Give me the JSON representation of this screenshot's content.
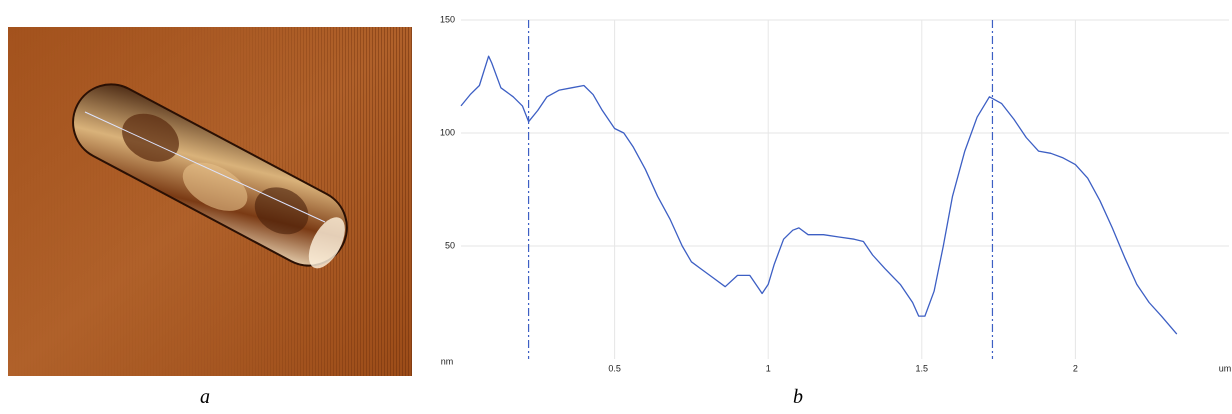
{
  "chart_data": {
    "type": "line",
    "xlabel": "um",
    "ylabel": "nm",
    "x": [
      0.0,
      0.03,
      0.06,
      0.09,
      0.1,
      0.13,
      0.17,
      0.2,
      0.22,
      0.25,
      0.28,
      0.32,
      0.36,
      0.4,
      0.43,
      0.46,
      0.5,
      0.53,
      0.56,
      0.6,
      0.64,
      0.68,
      0.72,
      0.75,
      0.78,
      0.82,
      0.86,
      0.9,
      0.94,
      0.97,
      0.98,
      1.0,
      1.02,
      1.05,
      1.08,
      1.1,
      1.13,
      1.18,
      1.23,
      1.28,
      1.31,
      1.34,
      1.38,
      1.43,
      1.47,
      1.49,
      1.51,
      1.54,
      1.57,
      1.6,
      1.64,
      1.68,
      1.72,
      1.76,
      1.8,
      1.84,
      1.88,
      1.92,
      1.96,
      2.0,
      2.04,
      2.08,
      2.12,
      2.16,
      2.2,
      2.24,
      2.28,
      2.33
    ],
    "values": [
      112,
      117,
      121,
      134,
      131,
      120,
      116,
      112,
      105,
      110,
      116,
      119,
      120,
      121,
      117,
      110,
      102,
      100,
      94,
      84,
      72,
      62,
      50,
      43,
      40,
      36,
      32,
      37,
      37,
      31,
      29,
      33,
      42,
      53,
      57,
      58,
      55,
      55,
      54,
      53,
      52,
      46,
      40,
      33,
      25,
      19,
      19,
      30,
      50,
      72,
      92,
      107,
      116,
      113,
      106,
      98,
      92,
      91,
      89,
      86,
      80,
      70,
      58,
      45,
      33,
      25,
      19,
      11
    ],
    "color": "#3d5fc4",
    "markers": [
      0.22,
      1.73
    ],
    "xlim": [
      0,
      2.5
    ],
    "ylim": [
      0,
      150
    ],
    "xticks": [
      0.5,
      1,
      1.5,
      2
    ],
    "yticks": [
      50,
      100,
      150
    ],
    "grid": true
  },
  "captions": [
    "a",
    "b"
  ]
}
